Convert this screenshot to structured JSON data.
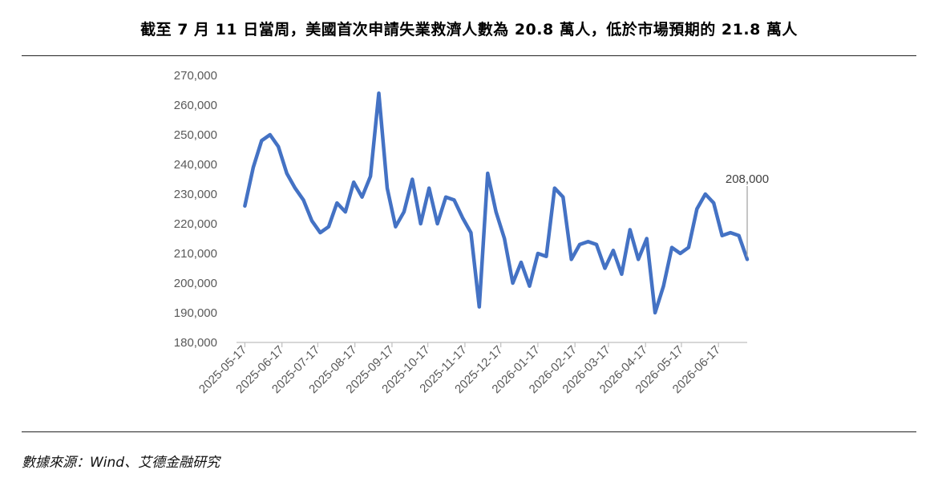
{
  "title": "截至 7 月 11 日當周，美國首次申請失業救濟人數為 20.8 萬人，低於市場預期的 21.8 萬人",
  "source": "數據來源：Wind、艾德金融研究",
  "colors": {
    "line": "#4472C4",
    "axis": "#BFBFBF",
    "text": "#595959",
    "annotation_leader": "#A6A6A6"
  },
  "chart_data": {
    "type": "line",
    "title": "截至 7 月 11 日當周，美國首次申請失業救濟人數為 20.8 萬人，低於市場預期的 21.8 萬人",
    "xlabel": "",
    "ylabel": "",
    "ylim": [
      180000,
      270000
    ],
    "y_ticks": [
      "180,000",
      "190,000",
      "200,000",
      "210,000",
      "220,000",
      "230,000",
      "240,000",
      "250,000",
      "260,000",
      "270,000"
    ],
    "x_tick_labels": [
      "2025-05-17",
      "2025-06-17",
      "2025-07-17",
      "2025-08-17",
      "2025-09-17",
      "2025-10-17",
      "2025-11-17",
      "2025-12-17",
      "2026-01-17",
      "2026-02-17",
      "2026-03-17",
      "2026-04-17",
      "2026-05-17",
      "2026-06-17"
    ],
    "x_start": "2025-05-10",
    "x_end": "2026-07-11",
    "grid": false,
    "legend": "none",
    "annotation": {
      "text": "208,000",
      "value": 208000,
      "x": "2026-07-11"
    },
    "series": [
      {
        "values": [
          226000,
          239000,
          248000,
          250000,
          246000,
          237000,
          232000,
          228000,
          221000,
          217000,
          219000,
          227000,
          224000,
          234000,
          229000,
          236000,
          264000,
          232000,
          219000,
          224000,
          235000,
          220000,
          232000,
          220000,
          229000,
          228000,
          222000,
          217000,
          192000,
          237000,
          224000,
          215000,
          200000,
          207000,
          199000,
          210000,
          209000,
          232000,
          229000,
          208000,
          213000,
          214000,
          213000,
          205000,
          211000,
          203000,
          218000,
          208000,
          215000,
          190000,
          199000,
          212000,
          210000,
          212000,
          225000,
          230000,
          227000,
          216000,
          217000,
          216000,
          208000
        ]
      }
    ]
  }
}
